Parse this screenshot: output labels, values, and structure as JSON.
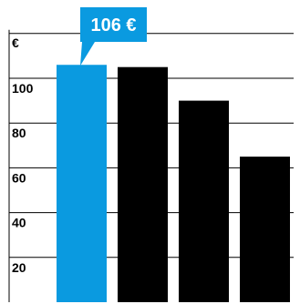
{
  "chart_data": {
    "type": "bar",
    "categories": [
      "",
      "",
      "",
      ""
    ],
    "values": [
      106,
      105,
      90,
      65
    ],
    "unit_label": "€",
    "yticks": [
      "20",
      "40",
      "60",
      "80",
      "100"
    ],
    "ylim": [
      0,
      120
    ],
    "grid": "horizontal",
    "highlight_index": 0,
    "callout": "106 €",
    "colors": {
      "highlight": "#0a9ae0",
      "bar": "#000000",
      "grid": "#000000",
      "callout_bg": "#0a9ae0",
      "callout_text": "#ffffff"
    }
  }
}
